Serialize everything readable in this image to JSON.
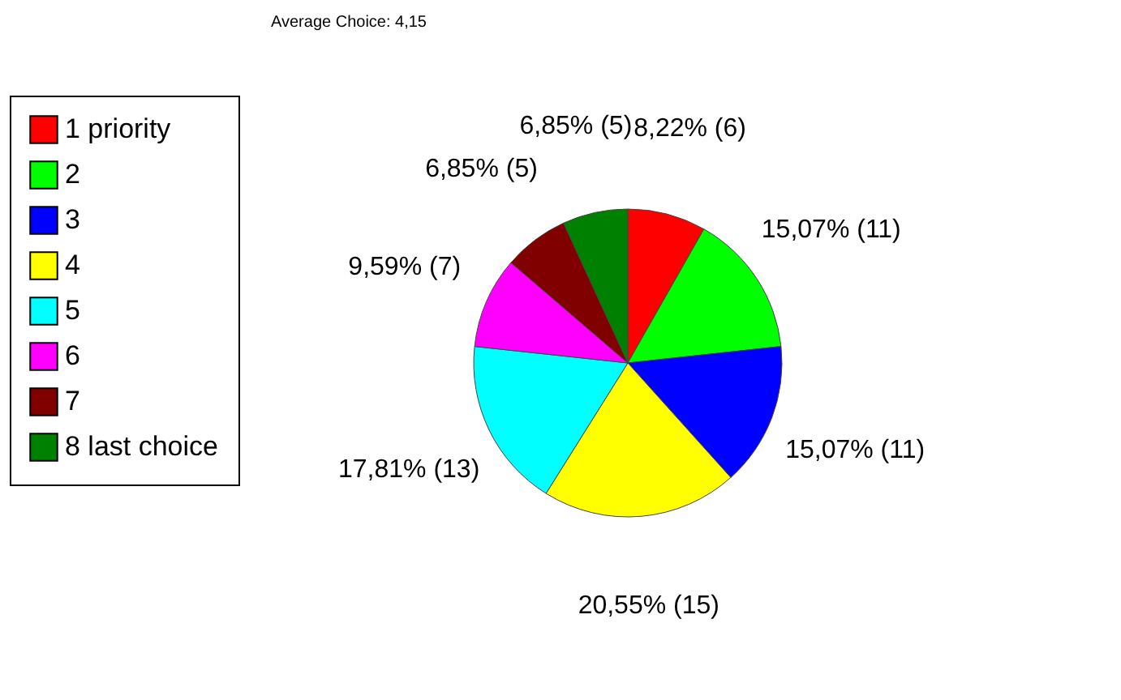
{
  "chart_data": {
    "type": "pie",
    "title": "Average Choice: 4,15",
    "categories": [
      "1 priority",
      "2",
      "3",
      "4",
      "5",
      "6",
      "7",
      "8 last choice"
    ],
    "values": [
      6,
      11,
      11,
      15,
      13,
      7,
      5,
      5
    ],
    "colors": [
      "#ff0000",
      "#00ff00",
      "#0000ff",
      "#ffff00",
      "#00ffff",
      "#ff00ff",
      "#800000",
      "#008000"
    ],
    "value_labels": [
      "8,22% (6)",
      "15,07% (11)",
      "15,07% (11)",
      "20,55% (15)",
      "17,81% (13)",
      "9,59% (7)",
      "6,85% (5)",
      "6,85% (5)"
    ],
    "legend": "left"
  }
}
